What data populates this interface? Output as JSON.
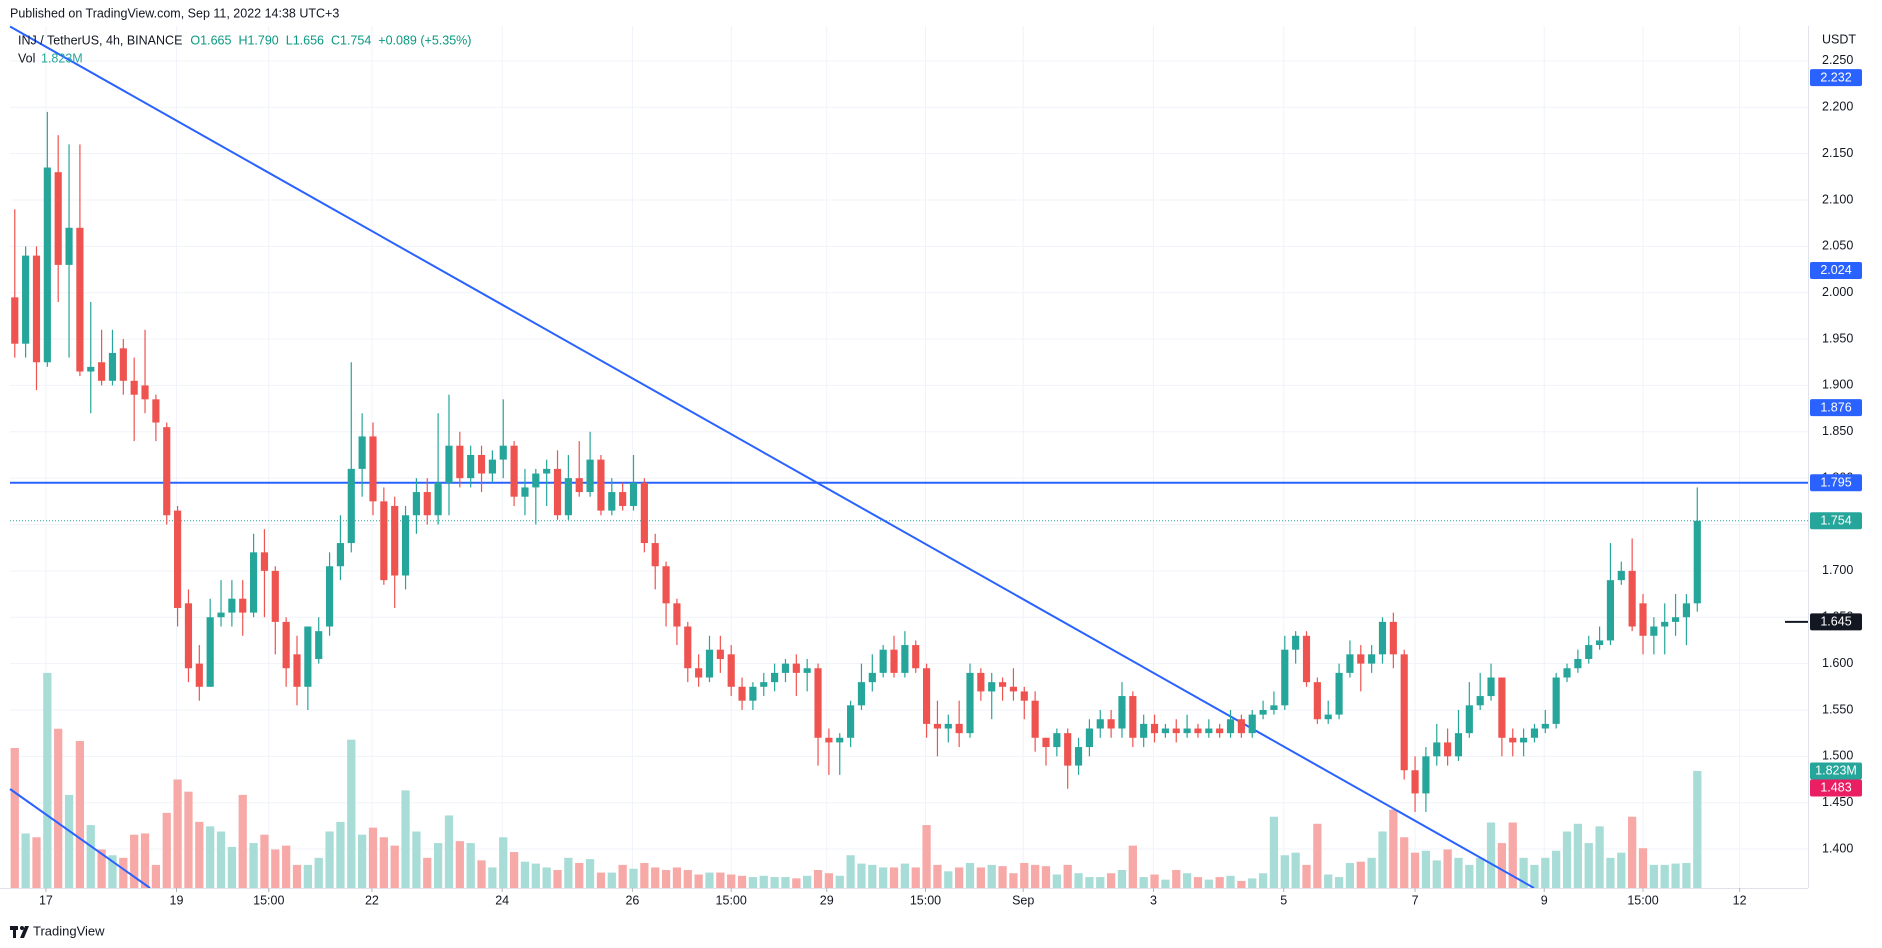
{
  "chart_data": {
    "type": "candlestick",
    "published": "Published on TradingView.com, Sep 11, 2022 14:38 UTC+3",
    "symbol": "INJ / TetherUS, 4h, BINANCE",
    "legend_values": [
      "O1.665",
      "H1.790",
      "L1.656",
      "C1.754",
      "+0.089 (+5.35%)"
    ],
    "volume_title": "Vol",
    "last_volume_label": "1.823M",
    "currency": "USDT",
    "brand": "TradingView",
    "up_color": "#26a69a",
    "down_color": "#ef5350",
    "volume_up_color": "#a8dcd6",
    "volume_down_color": "#f7a9a7",
    "grid": true,
    "xlim": [
      -0.44,
      165.2
    ],
    "ylim": [
      1.358,
      2.279
    ],
    "volume_lim": [
      0,
      13.3
    ],
    "xticks": [
      {
        "value": 2.87,
        "label": "17"
      },
      {
        "value": 14.9,
        "label": "19"
      },
      {
        "value": 23.4,
        "label": "15:00"
      },
      {
        "value": 32.9,
        "label": "22"
      },
      {
        "value": 44.9,
        "label": "24"
      },
      {
        "value": 56.9,
        "label": "26"
      },
      {
        "value": 66,
        "label": "15:00"
      },
      {
        "value": 74.8,
        "label": "29"
      },
      {
        "value": 83.9,
        "label": "15:00"
      },
      {
        "value": 92.9,
        "label": "Sep"
      },
      {
        "value": 104.9,
        "label": "3"
      },
      {
        "value": 116.9,
        "label": "5"
      },
      {
        "value": 129,
        "label": "7"
      },
      {
        "value": 140.9,
        "label": "9"
      },
      {
        "value": 150,
        "label": "15:00"
      },
      {
        "value": 158.9,
        "label": "12"
      }
    ],
    "yticks": [
      {
        "value": 1.4,
        "label": "1.400"
      },
      {
        "value": 1.45,
        "label": "1.450"
      },
      {
        "value": 1.5,
        "label": "1.500"
      },
      {
        "value": 1.55,
        "label": "1.550"
      },
      {
        "value": 1.6,
        "label": "1.600"
      },
      {
        "value": 1.65,
        "label": "1.650"
      },
      {
        "value": 1.7,
        "label": "1.700"
      },
      {
        "value": 1.75,
        "label": "1.750"
      },
      {
        "value": 1.8,
        "label": "1.800"
      },
      {
        "value": 1.85,
        "label": "1.850"
      },
      {
        "value": 1.9,
        "label": "1.900"
      },
      {
        "value": 1.95,
        "label": "1.950"
      },
      {
        "value": 2.0,
        "label": "2.000"
      },
      {
        "value": 2.05,
        "label": "2.050"
      },
      {
        "value": 2.1,
        "label": "2.100"
      },
      {
        "value": 2.15,
        "label": "2.150"
      },
      {
        "value": 2.2,
        "label": "2.200"
      },
      {
        "value": 2.25,
        "label": "2.250"
      }
    ],
    "price_tags": [
      {
        "value": 2.232,
        "color": "#2962ff"
      },
      {
        "value": 2.024,
        "color": "#2962ff"
      },
      {
        "value": 1.876,
        "color": "#2962ff"
      },
      {
        "value": 1.795,
        "color": "#2962ff",
        "line": "solid"
      },
      {
        "value": 1.645,
        "color": "#131722",
        "line": "stub"
      },
      {
        "value": 1.483,
        "color": "#e91e63"
      }
    ],
    "open": [
      1.995,
      1.945,
      2.04,
      1.925,
      2.13,
      2.03,
      2.07,
      1.915,
      1.925,
      1.905,
      1.94,
      1.905,
      1.9,
      1.885,
      1.855,
      1.765,
      1.665,
      1.6,
      1.575,
      1.65,
      1.655,
      1.67,
      1.655,
      1.72,
      1.7,
      1.645,
      1.61,
      1.575,
      1.605,
      1.64,
      1.705,
      1.73,
      1.81,
      1.845,
      1.775,
      1.77,
      1.695,
      1.76,
      1.785,
      1.76,
      1.795,
      1.835,
      1.8,
      1.825,
      1.805,
      1.82,
      1.835,
      1.78,
      1.79,
      1.805,
      1.81,
      1.76,
      1.8,
      1.785,
      1.82,
      1.765,
      1.785,
      1.77,
      1.795,
      1.73,
      1.705,
      1.665,
      1.64,
      1.595,
      1.585,
      1.615,
      1.61,
      1.575,
      1.56,
      1.575,
      1.58,
      1.59,
      1.6,
      1.59,
      1.595,
      1.52,
      1.515,
      1.52,
      1.555,
      1.58,
      1.59,
      1.615,
      1.59,
      1.62,
      1.595,
      1.535,
      1.53,
      1.535,
      1.525,
      1.59,
      1.57,
      1.58,
      1.575,
      1.57,
      1.56,
      1.52,
      1.51,
      1.525,
      1.49,
      1.51,
      1.53,
      1.54,
      1.53,
      1.565,
      1.52,
      1.535,
      1.525,
      1.53,
      1.525,
      1.53,
      1.525,
      1.53,
      1.525,
      1.54,
      1.525,
      1.545,
      1.55,
      1.555,
      1.615,
      1.63,
      1.58,
      1.54,
      1.545,
      1.59,
      1.61,
      1.6,
      1.61,
      1.645,
      1.61,
      1.485,
      1.46,
      1.5,
      1.515,
      1.5,
      1.525,
      1.555,
      1.565,
      1.585,
      1.52,
      1.515,
      1.52,
      1.53,
      1.535,
      1.585,
      1.595,
      1.605,
      1.62,
      1.625,
      1.69,
      1.7,
      1.665,
      1.63,
      1.64,
      1.645,
      1.65,
      1.665
    ],
    "high": [
      2.09,
      2.05,
      2.05,
      2.195,
      2.17,
      2.16,
      2.16,
      1.99,
      1.96,
      1.96,
      1.95,
      1.93,
      1.96,
      1.89,
      1.86,
      1.77,
      1.68,
      1.62,
      1.67,
      1.69,
      1.69,
      1.69,
      1.74,
      1.745,
      1.705,
      1.65,
      1.63,
      1.64,
      1.65,
      1.72,
      1.76,
      1.925,
      1.87,
      1.86,
      1.79,
      1.78,
      1.77,
      1.8,
      1.8,
      1.87,
      1.89,
      1.85,
      1.835,
      1.835,
      1.83,
      1.885,
      1.84,
      1.81,
      1.81,
      1.82,
      1.83,
      1.825,
      1.84,
      1.85,
      1.825,
      1.8,
      1.795,
      1.825,
      1.8,
      1.74,
      1.71,
      1.67,
      1.645,
      1.61,
      1.63,
      1.63,
      1.62,
      1.585,
      1.58,
      1.59,
      1.6,
      1.605,
      1.61,
      1.605,
      1.6,
      1.53,
      1.525,
      1.56,
      1.6,
      1.61,
      1.62,
      1.63,
      1.635,
      1.625,
      1.6,
      1.56,
      1.545,
      1.56,
      1.6,
      1.595,
      1.59,
      1.585,
      1.595,
      1.575,
      1.57,
      1.52,
      1.53,
      1.53,
      1.52,
      1.54,
      1.55,
      1.55,
      1.58,
      1.57,
      1.545,
      1.545,
      1.535,
      1.54,
      1.545,
      1.535,
      1.54,
      1.535,
      1.55,
      1.545,
      1.55,
      1.56,
      1.57,
      1.63,
      1.635,
      1.635,
      1.585,
      1.56,
      1.6,
      1.625,
      1.62,
      1.62,
      1.65,
      1.655,
      1.615,
      1.5,
      1.51,
      1.535,
      1.53,
      1.55,
      1.58,
      1.59,
      1.6,
      1.585,
      1.53,
      1.53,
      1.535,
      1.55,
      1.59,
      1.6,
      1.615,
      1.63,
      1.64,
      1.73,
      1.71,
      1.735,
      1.675,
      1.65,
      1.665,
      1.675,
      1.675,
      1.79
    ],
    "low": [
      1.93,
      1.93,
      1.895,
      1.92,
      1.99,
      1.93,
      1.91,
      1.87,
      1.9,
      1.9,
      1.89,
      1.84,
      1.87,
      1.84,
      1.75,
      1.64,
      1.58,
      1.56,
      1.575,
      1.64,
      1.64,
      1.63,
      1.65,
      1.65,
      1.61,
      1.575,
      1.555,
      1.55,
      1.6,
      1.63,
      1.69,
      1.72,
      1.78,
      1.76,
      1.685,
      1.66,
      1.68,
      1.74,
      1.75,
      1.75,
      1.76,
      1.79,
      1.79,
      1.785,
      1.795,
      1.8,
      1.77,
      1.76,
      1.75,
      1.77,
      1.755,
      1.755,
      1.78,
      1.78,
      1.76,
      1.76,
      1.765,
      1.765,
      1.72,
      1.68,
      1.64,
      1.62,
      1.58,
      1.575,
      1.58,
      1.59,
      1.565,
      1.55,
      1.55,
      1.565,
      1.57,
      1.58,
      1.565,
      1.57,
      1.49,
      1.48,
      1.48,
      1.51,
      1.55,
      1.57,
      1.585,
      1.585,
      1.585,
      1.59,
      1.52,
      1.5,
      1.515,
      1.51,
      1.52,
      1.56,
      1.54,
      1.56,
      1.56,
      1.54,
      1.505,
      1.49,
      1.5,
      1.465,
      1.48,
      1.5,
      1.52,
      1.52,
      1.52,
      1.51,
      1.51,
      1.515,
      1.52,
      1.515,
      1.52,
      1.52,
      1.52,
      1.52,
      1.52,
      1.52,
      1.52,
      1.54,
      1.545,
      1.55,
      1.6,
      1.575,
      1.535,
      1.535,
      1.54,
      1.585,
      1.57,
      1.59,
      1.6,
      1.595,
      1.475,
      1.44,
      1.44,
      1.49,
      1.49,
      1.495,
      1.52,
      1.55,
      1.56,
      1.5,
      1.5,
      1.5,
      1.515,
      1.525,
      1.53,
      1.58,
      1.59,
      1.6,
      1.615,
      1.62,
      1.685,
      1.635,
      1.61,
      1.61,
      1.61,
      1.63,
      1.62,
      1.656
    ],
    "close": [
      1.945,
      2.04,
      1.925,
      2.135,
      2.03,
      2.07,
      1.915,
      1.92,
      1.905,
      1.935,
      1.905,
      1.89,
      1.885,
      1.86,
      1.76,
      1.66,
      1.595,
      1.575,
      1.65,
      1.655,
      1.67,
      1.655,
      1.72,
      1.7,
      1.645,
      1.595,
      1.575,
      1.64,
      1.635,
      1.705,
      1.73,
      1.81,
      1.845,
      1.775,
      1.69,
      1.695,
      1.76,
      1.785,
      1.76,
      1.795,
      1.835,
      1.8,
      1.825,
      1.805,
      1.82,
      1.835,
      1.78,
      1.79,
      1.805,
      1.81,
      1.76,
      1.8,
      1.785,
      1.82,
      1.765,
      1.785,
      1.77,
      1.795,
      1.73,
      1.705,
      1.665,
      1.64,
      1.595,
      1.585,
      1.615,
      1.605,
      1.575,
      1.56,
      1.575,
      1.58,
      1.59,
      1.6,
      1.59,
      1.595,
      1.52,
      1.515,
      1.52,
      1.555,
      1.58,
      1.59,
      1.615,
      1.59,
      1.62,
      1.595,
      1.535,
      1.53,
      1.535,
      1.525,
      1.59,
      1.57,
      1.58,
      1.575,
      1.57,
      1.56,
      1.52,
      1.51,
      1.525,
      1.49,
      1.51,
      1.53,
      1.54,
      1.53,
      1.565,
      1.52,
      1.535,
      1.525,
      1.53,
      1.525,
      1.53,
      1.525,
      1.53,
      1.525,
      1.54,
      1.525,
      1.545,
      1.55,
      1.555,
      1.615,
      1.63,
      1.58,
      1.54,
      1.545,
      1.59,
      1.61,
      1.6,
      1.61,
      1.645,
      1.61,
      1.485,
      1.46,
      1.5,
      1.515,
      1.5,
      1.525,
      1.555,
      1.565,
      1.585,
      1.52,
      1.515,
      1.52,
      1.53,
      1.535,
      1.585,
      1.595,
      1.605,
      1.62,
      1.625,
      1.69,
      1.7,
      1.64,
      1.63,
      1.64,
      1.645,
      1.65,
      1.665,
      1.754
    ],
    "volume": [
      2.18,
      0.85,
      0.79,
      3.35,
      2.48,
      1.45,
      2.29,
      0.98,
      0.6,
      0.51,
      0.47,
      0.83,
      0.85,
      0.36,
      1.17,
      1.69,
      1.5,
      1.03,
      0.96,
      0.88,
      0.64,
      1.45,
      0.7,
      0.83,
      0.6,
      0.66,
      0.36,
      0.36,
      0.47,
      0.88,
      1.03,
      2.31,
      0.83,
      0.94,
      0.79,
      0.66,
      1.52,
      0.88,
      0.47,
      0.7,
      1.13,
      0.73,
      0.7,
      0.43,
      0.32,
      0.79,
      0.56,
      0.41,
      0.38,
      0.32,
      0.28,
      0.47,
      0.39,
      0.45,
      0.24,
      0.24,
      0.36,
      0.3,
      0.39,
      0.32,
      0.28,
      0.32,
      0.28,
      0.21,
      0.24,
      0.24,
      0.21,
      0.19,
      0.17,
      0.19,
      0.17,
      0.17,
      0.15,
      0.19,
      0.28,
      0.23,
      0.19,
      0.51,
      0.38,
      0.36,
      0.32,
      0.32,
      0.38,
      0.32,
      0.98,
      0.36,
      0.26,
      0.32,
      0.39,
      0.32,
      0.36,
      0.34,
      0.23,
      0.39,
      0.36,
      0.34,
      0.21,
      0.36,
      0.23,
      0.17,
      0.17,
      0.23,
      0.28,
      0.66,
      0.17,
      0.21,
      0.13,
      0.28,
      0.23,
      0.17,
      0.13,
      0.17,
      0.19,
      0.11,
      0.15,
      0.23,
      1.11,
      0.51,
      0.55,
      0.36,
      1.0,
      0.21,
      0.17,
      0.39,
      0.41,
      0.47,
      0.88,
      1.22,
      0.79,
      0.55,
      0.58,
      0.43,
      0.6,
      0.47,
      0.36,
      0.47,
      1.02,
      0.7,
      1.02,
      0.47,
      0.36,
      0.47,
      0.58,
      0.88,
      1.0,
      0.7,
      0.96,
      0.47,
      0.55,
      1.11,
      0.62,
      0.36,
      0.36,
      0.38,
      0.39,
      1.823
    ]
  }
}
